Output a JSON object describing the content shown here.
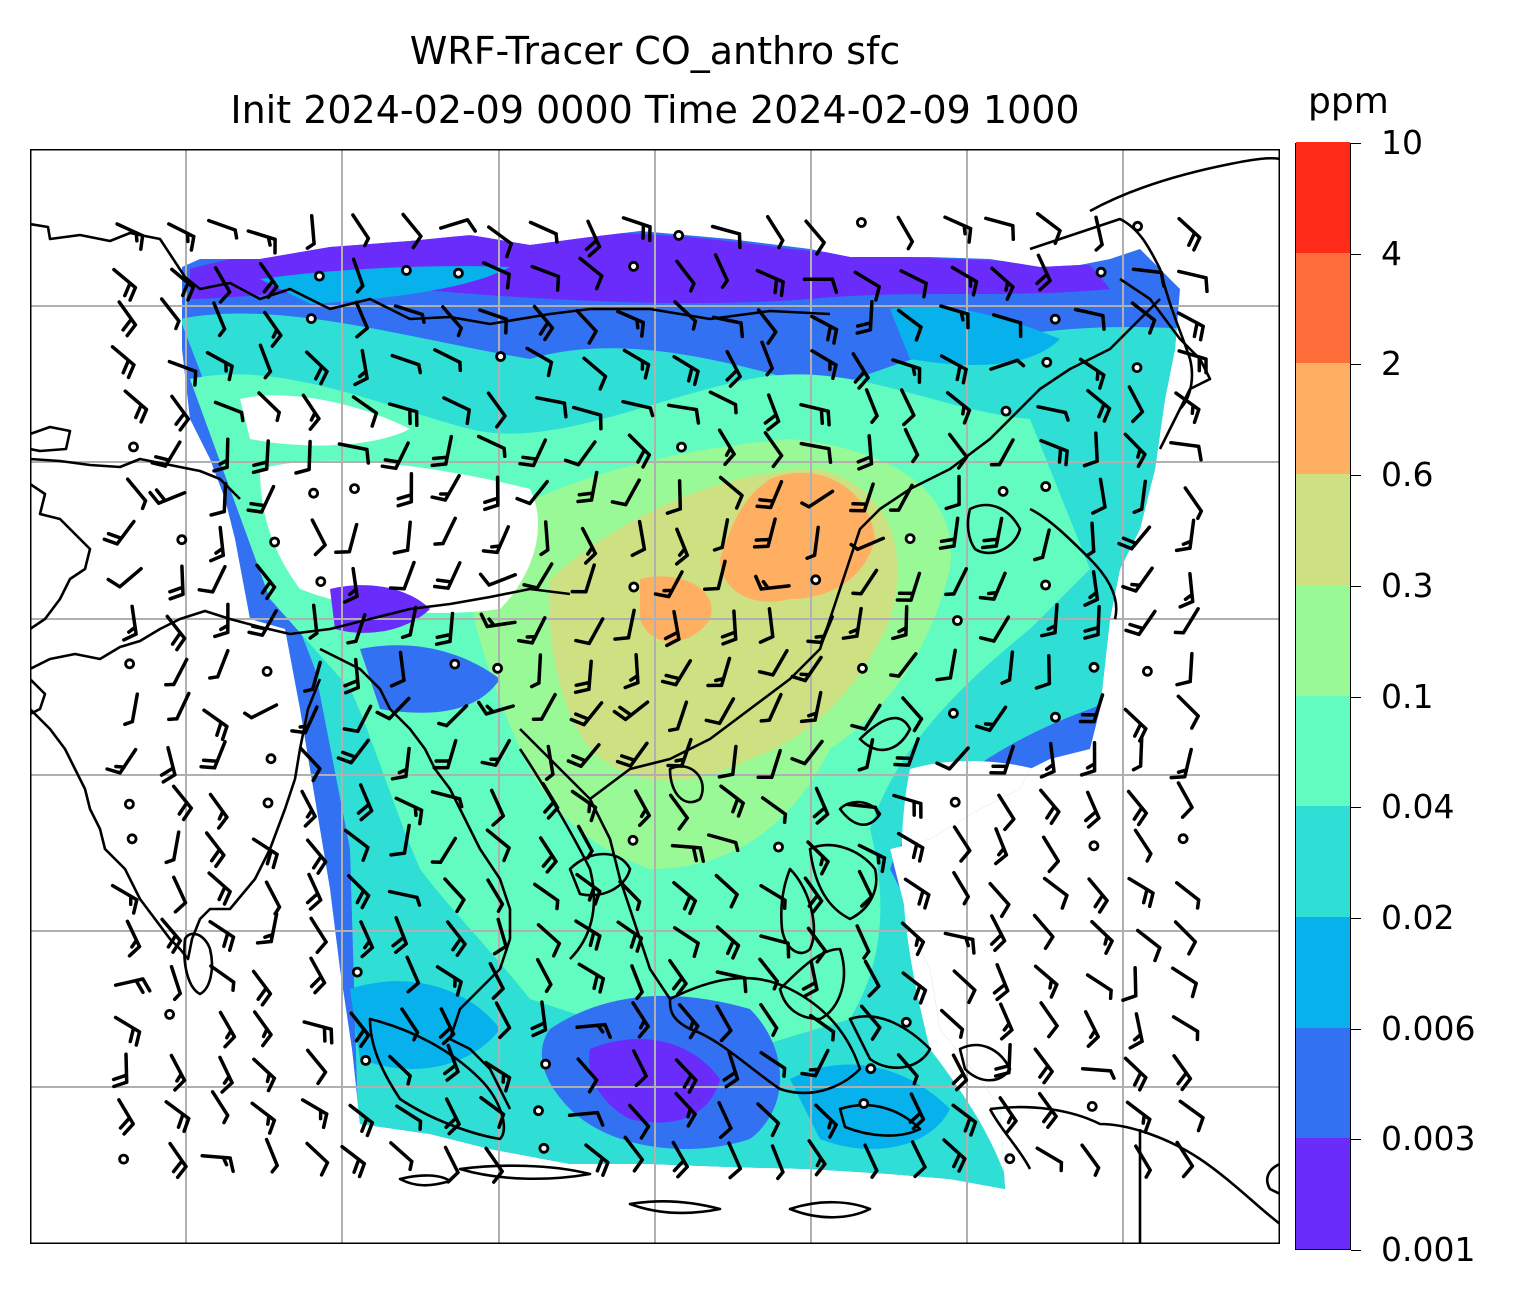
{
  "title": {
    "line1": "WRF-Tracer CO_anthro sfc",
    "line2": "Init 2024-02-09 0000 Time 2024-02-09 1000"
  },
  "colorbar": {
    "unit": "ppm",
    "levels": [
      "0.001",
      "0.003",
      "0.006",
      "0.02",
      "0.04",
      "0.1",
      "0.3",
      "0.6",
      "2",
      "4",
      "10"
    ],
    "colors": [
      "#6a2cfb",
      "#3371f3",
      "#07b1ec",
      "#2fdfd5",
      "#62fbc0",
      "#99f997",
      "#cde183",
      "#ffaf62",
      "#ff6e3a",
      "#ff2a17"
    ]
  },
  "map": {
    "grid": true,
    "grid_color": "#b0b0b0",
    "coastline_color": "#000000",
    "wind_barbs": true,
    "calm_markers": true
  }
}
